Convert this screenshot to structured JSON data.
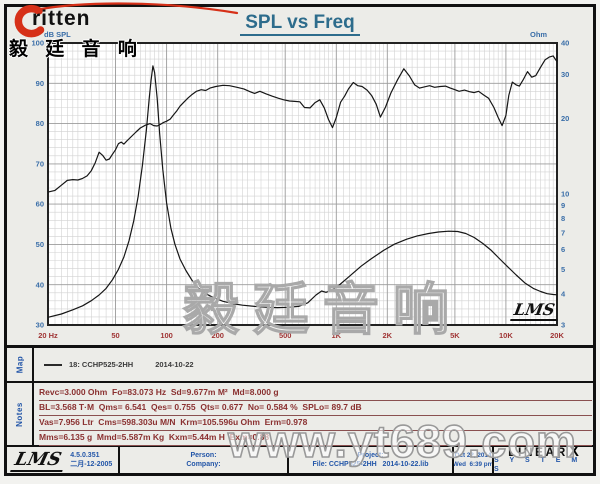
{
  "brand": {
    "name": "ritten",
    "cn": "毅 廷 音 响"
  },
  "title": "SPL vs Freq",
  "chart_data": {
    "type": "line",
    "title": "SPL vs Freq",
    "x_axis": {
      "scale": "log",
      "min": 20,
      "max": 20000,
      "ticks": [
        {
          "label": "20 Hz",
          "f": 20
        },
        {
          "label": "50",
          "f": 50
        },
        {
          "label": "100",
          "f": 100
        },
        {
          "label": "200",
          "f": 200
        },
        {
          "label": "500",
          "f": 500
        },
        {
          "label": "1K",
          "f": 1000
        },
        {
          "label": "2K",
          "f": 2000
        },
        {
          "label": "5K",
          "f": 5000
        },
        {
          "label": "10K",
          "f": 10000
        },
        {
          "label": "20K",
          "f": 20000
        }
      ]
    },
    "y_left": {
      "label": "dB SPL",
      "min": 30,
      "max": 100,
      "minor_step": 2,
      "ticks": [
        100,
        90,
        80,
        70,
        60,
        50,
        40,
        30
      ]
    },
    "y_right": {
      "label": "Ohm",
      "scale": "log",
      "min": 3,
      "max": 40,
      "ticks": [
        40,
        30,
        20,
        10,
        9,
        8,
        7,
        6,
        5,
        4,
        3
      ]
    },
    "grid": true,
    "series": [
      {
        "name": "spl-curve",
        "axis": "left",
        "points": [
          [
            20,
            63
          ],
          [
            22,
            63.4
          ],
          [
            24,
            64.7
          ],
          [
            26,
            65.9
          ],
          [
            28,
            66.1
          ],
          [
            30,
            66
          ],
          [
            32,
            66.4
          ],
          [
            34,
            67
          ],
          [
            36,
            68.3
          ],
          [
            38,
            70.3
          ],
          [
            40,
            72.9
          ],
          [
            42,
            72.1
          ],
          [
            44,
            70.9
          ],
          [
            46,
            71.2
          ],
          [
            48,
            72.4
          ],
          [
            50,
            73.5
          ],
          [
            52,
            75
          ],
          [
            54,
            75.4
          ],
          [
            56,
            74.9
          ],
          [
            58,
            75.6
          ],
          [
            62,
            76.8
          ],
          [
            66,
            77.9
          ],
          [
            70,
            78.9
          ],
          [
            75,
            79.6
          ],
          [
            80,
            80
          ],
          [
            84,
            79.5
          ],
          [
            88,
            79.4
          ],
          [
            92,
            79.8
          ],
          [
            96,
            80.3
          ],
          [
            100,
            80.6
          ],
          [
            105,
            81.1
          ],
          [
            110,
            82.2
          ],
          [
            115,
            83.2
          ],
          [
            120,
            84.3
          ],
          [
            127,
            85.4
          ],
          [
            134,
            86.4
          ],
          [
            142,
            87.3
          ],
          [
            150,
            88
          ],
          [
            160,
            88.4
          ],
          [
            170,
            88.2
          ],
          [
            180,
            88.8
          ],
          [
            195,
            89.2
          ],
          [
            215,
            89.5
          ],
          [
            235,
            89.4
          ],
          [
            260,
            89
          ],
          [
            285,
            88.6
          ],
          [
            310,
            87.9
          ],
          [
            330,
            87.5
          ],
          [
            355,
            88
          ],
          [
            385,
            87.4
          ],
          [
            420,
            86.8
          ],
          [
            455,
            86.3
          ],
          [
            490,
            85.9
          ],
          [
            530,
            85.6
          ],
          [
            570,
            85.5
          ],
          [
            610,
            85.4
          ],
          [
            650,
            84
          ],
          [
            700,
            83.9
          ],
          [
            750,
            85.2
          ],
          [
            800,
            85.9
          ],
          [
            850,
            83.9
          ],
          [
            900,
            81
          ],
          [
            950,
            79
          ],
          [
            1000,
            81.5
          ],
          [
            1060,
            85.3
          ],
          [
            1120,
            86.8
          ],
          [
            1180,
            88.6
          ],
          [
            1260,
            90.2
          ],
          [
            1340,
            89.4
          ],
          [
            1420,
            89.2
          ],
          [
            1520,
            88.3
          ],
          [
            1620,
            86.9
          ],
          [
            1720,
            84.8
          ],
          [
            1820,
            81.6
          ],
          [
            1950,
            84.1
          ],
          [
            2100,
            87.6
          ],
          [
            2300,
            90.9
          ],
          [
            2500,
            93.6
          ],
          [
            2700,
            91.8
          ],
          [
            2900,
            89.6
          ],
          [
            3100,
            88.8
          ],
          [
            3300,
            89.1
          ],
          [
            3550,
            89.4
          ],
          [
            3800,
            89
          ],
          [
            4100,
            89.2
          ],
          [
            4400,
            89.3
          ],
          [
            4700,
            88.8
          ],
          [
            5000,
            88.4
          ],
          [
            5300,
            88
          ],
          [
            5700,
            88.3
          ],
          [
            6100,
            87.9
          ],
          [
            6500,
            87.7
          ],
          [
            6900,
            88
          ],
          [
            7400,
            87.1
          ],
          [
            7900,
            86.3
          ],
          [
            8500,
            84
          ],
          [
            9000,
            81.5
          ],
          [
            9500,
            79.5
          ],
          [
            10000,
            82
          ],
          [
            10400,
            87
          ],
          [
            10900,
            90.3
          ],
          [
            11500,
            89.6
          ],
          [
            12000,
            89.3
          ],
          [
            12600,
            90.8
          ],
          [
            13400,
            92.9
          ],
          [
            14200,
            91.5
          ],
          [
            15000,
            91.9
          ],
          [
            16000,
            94
          ],
          [
            17000,
            95.8
          ],
          [
            18000,
            96.5
          ],
          [
            19000,
            96.8
          ],
          [
            19600,
            95.9
          ],
          [
            20000,
            95.4
          ]
        ]
      },
      {
        "name": "impedance-curve",
        "axis": "right",
        "points": [
          [
            20,
            3.22
          ],
          [
            24,
            3.32
          ],
          [
            28,
            3.45
          ],
          [
            32,
            3.58
          ],
          [
            36,
            3.75
          ],
          [
            40,
            3.95
          ],
          [
            44,
            4.2
          ],
          [
            48,
            4.55
          ],
          [
            52,
            5
          ],
          [
            56,
            5.6
          ],
          [
            60,
            6.5
          ],
          [
            64,
            7.8
          ],
          [
            68,
            9.8
          ],
          [
            72,
            13
          ],
          [
            76,
            18
          ],
          [
            79,
            24
          ],
          [
            81,
            28.5
          ],
          [
            83,
            32.4
          ],
          [
            85,
            30.5
          ],
          [
            88,
            24
          ],
          [
            91,
            17.5
          ],
          [
            95,
            12.5
          ],
          [
            100,
            9.2
          ],
          [
            106,
            7.3
          ],
          [
            112,
            6.3
          ],
          [
            120,
            5.5
          ],
          [
            130,
            4.95
          ],
          [
            142,
            4.5
          ],
          [
            155,
            4.2
          ],
          [
            170,
            4
          ],
          [
            190,
            3.85
          ],
          [
            215,
            3.73
          ],
          [
            245,
            3.65
          ],
          [
            280,
            3.6
          ],
          [
            330,
            3.56
          ],
          [
            390,
            3.53
          ],
          [
            450,
            3.52
          ],
          [
            520,
            3.53
          ],
          [
            600,
            3.56
          ],
          [
            680,
            3.68
          ],
          [
            760,
            3.95
          ],
          [
            820,
            4.1
          ],
          [
            870,
            4.05
          ],
          [
            950,
            4.15
          ],
          [
            1050,
            4.35
          ],
          [
            1200,
            4.7
          ],
          [
            1400,
            5.15
          ],
          [
            1600,
            5.5
          ],
          [
            1900,
            5.95
          ],
          [
            2200,
            6.3
          ],
          [
            2600,
            6.6
          ],
          [
            3000,
            6.8
          ],
          [
            3500,
            6.95
          ],
          [
            4000,
            7.05
          ],
          [
            4600,
            7.1
          ],
          [
            5200,
            7.08
          ],
          [
            5800,
            6.95
          ],
          [
            6500,
            6.7
          ],
          [
            7300,
            6.35
          ],
          [
            8200,
            5.95
          ],
          [
            9200,
            5.5
          ],
          [
            10300,
            5.1
          ],
          [
            11500,
            4.75
          ],
          [
            13000,
            4.4
          ],
          [
            14500,
            4.2
          ],
          [
            16000,
            4.08
          ],
          [
            17500,
            4
          ],
          [
            19000,
            3.97
          ],
          [
            20000,
            3.96
          ]
        ]
      }
    ]
  },
  "map": {
    "label": "Map",
    "legend_name": "18: CCHP525-2HH",
    "legend_date": "2014-10-22"
  },
  "notes": {
    "label": "Notes",
    "lines": [
      "Revc=3.000 Ohm  Fo=83.073 Hz  Sd=9.677m M²  Md=8.000 g",
      "BL=3.568 T·M  Qms= 6.541  Qes= 0.755  Qts= 0.677  No= 0.584 %  SPLo= 89.7 dB",
      "Vas=7.956 Ltr  Cms=598.303u M/N  Krm=105.596u Ohm  Erm=0.978",
      "Mms=6.135 g  Mmd=5.587m Kg  Kxm=5.44m H  Exm=0.88"
    ]
  },
  "footer": {
    "version": "4.5.0.351",
    "version_date": "二月-12-2005",
    "person_label": "Person:",
    "company_label": "Company:",
    "project_label": "Project:",
    "file_label": "File: CCHP525-2HH   2014-10-22.lib",
    "date": "Oct 22, 2014",
    "time": "Wed  6:39 pm",
    "brand_letters": "LINEAR",
    "brand_x": "X",
    "brand_sub": "S Y S T E M S"
  },
  "watermarks": {
    "chart": "毅廷音响",
    "site": "www.yt689.com",
    "lms": "LMS"
  },
  "colors": {
    "title": "#2d6c8c",
    "axis_blue": "#3a6ea8",
    "axis_red": "#a03535",
    "grid_minor": "#d2d2d2",
    "grid_major": "#9b9b9b",
    "curve": "#161616",
    "notes_text": "#8a3030",
    "footer_text": "#2356a8",
    "brand_red": "#d63018"
  }
}
